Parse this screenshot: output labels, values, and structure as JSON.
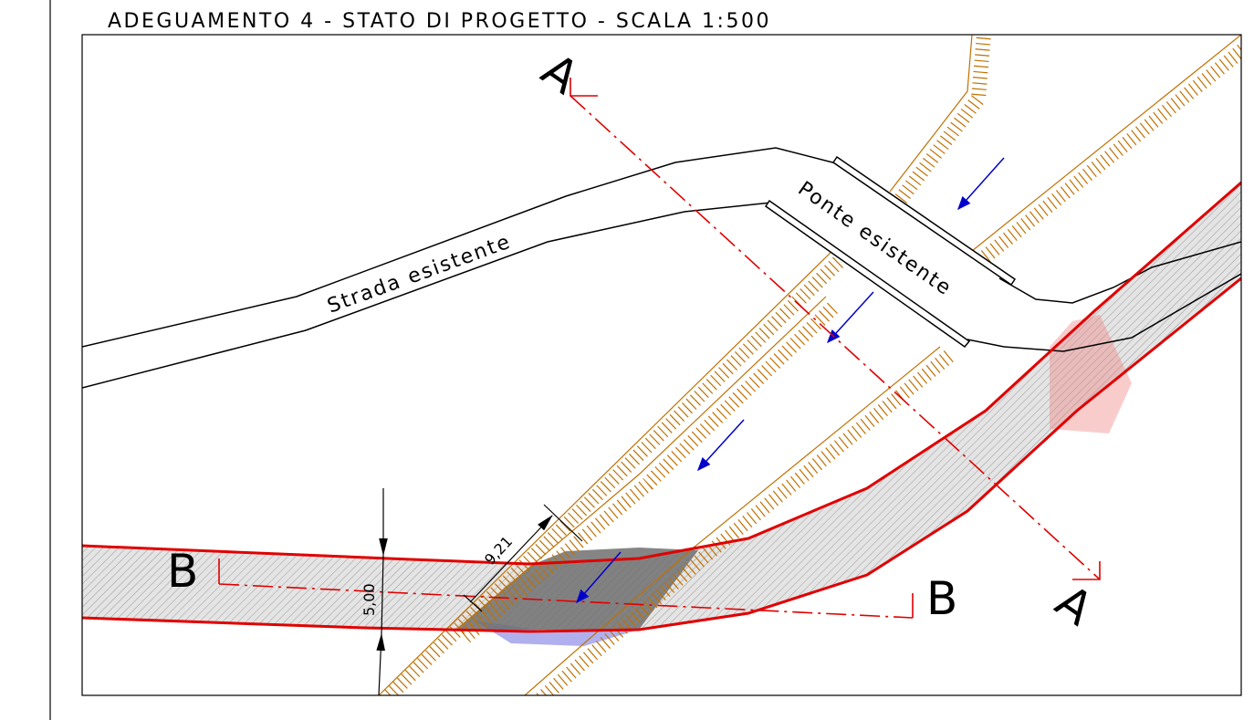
{
  "title": "ADEGUAMENTO 4 -  STATO DI PROGETTO - SCALA 1:500",
  "labels": {
    "road": "Strada esistente",
    "bridge": "Ponte esistente"
  },
  "section_marks": {
    "a_top": "A",
    "a_bottom": "A",
    "b_left": "B",
    "b_right": "B"
  },
  "dimensions": {
    "width": "5,00",
    "offset": "9,21"
  }
}
